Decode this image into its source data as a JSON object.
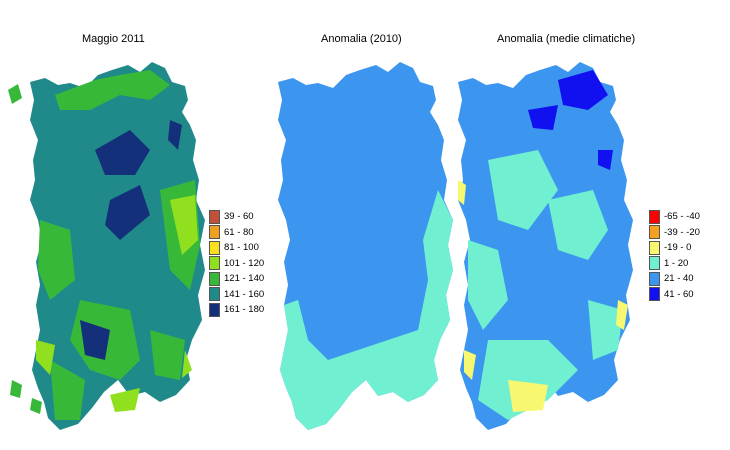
{
  "maps": [
    {
      "title": "Maggio 2011"
    },
    {
      "title": "Anomalia (2010)"
    },
    {
      "title": "Anomalia (medie climatiche)"
    }
  ],
  "legend_precip": [
    {
      "label": "39 - 60",
      "color": "#c0503a"
    },
    {
      "label": "61 - 80",
      "color": "#f0a020"
    },
    {
      "label": "81 - 100",
      "color": "#f8e020"
    },
    {
      "label": "101 - 120",
      "color": "#90e020"
    },
    {
      "label": "121 - 140",
      "color": "#38b838"
    },
    {
      "label": "141 - 160",
      "color": "#208a8a"
    },
    {
      "label": "161 - 180",
      "color": "#14307a"
    }
  ],
  "legend_anomaly": [
    {
      "label": "-65 - -40",
      "color": "#ff0000"
    },
    {
      "label": "-39 - -20",
      "color": "#f4a020"
    },
    {
      "label": "-19 - 0",
      "color": "#f8f870"
    },
    {
      "label": "1 - 20",
      "color": "#70f0d0"
    },
    {
      "label": "21 - 40",
      "color": "#3c96f0"
    },
    {
      "label": "41 - 60",
      "color": "#1010f0"
    }
  ]
}
